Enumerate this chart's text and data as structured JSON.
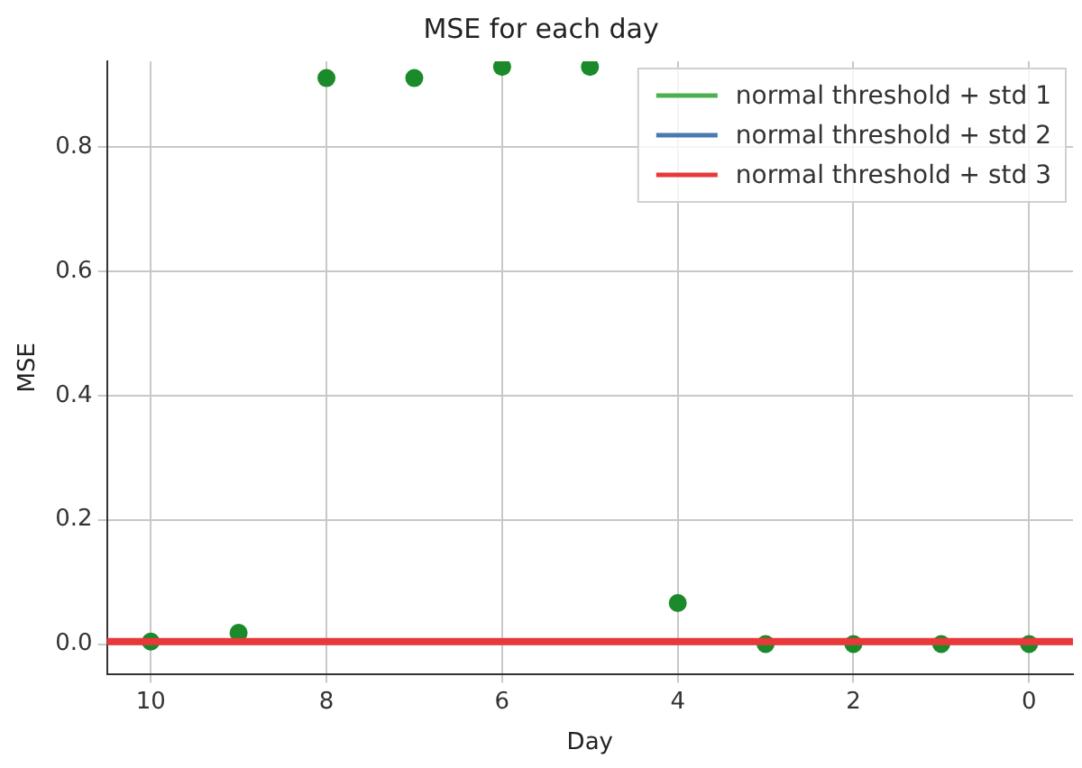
{
  "chart_data": {
    "type": "scatter",
    "title": "MSE for each day",
    "xlabel": "Day",
    "ylabel": "MSE",
    "xlim": [
      10.5,
      -0.5
    ],
    "xticks": [
      10,
      8,
      6,
      4,
      2,
      0
    ],
    "ylim": [
      -0.048,
      0.938
    ],
    "yticks": [
      {
        "value": 0,
        "label": "0.0"
      },
      {
        "value": 0.2,
        "label": "0.2"
      },
      {
        "value": 0.4,
        "label": "0.4"
      },
      {
        "value": 0.6,
        "label": "0.6"
      },
      {
        "value": 0.8,
        "label": "0.8"
      }
    ],
    "x": [
      10,
      9,
      8,
      7,
      6,
      5,
      4,
      3,
      2,
      1,
      0
    ],
    "series": [
      {
        "color": "#1a8a2a",
        "marker": "circle",
        "values": [
          0.004,
          0.018,
          0.911,
          0.911,
          0.929,
          0.929,
          0.066,
          0.0,
          0.0,
          0.0,
          0.0
        ]
      },
      {
        "type": "line",
        "name": "normal threshold + std 1",
        "color": "#4caf50",
        "values": [
          null,
          null,
          null,
          null,
          null,
          null,
          null,
          null,
          null,
          null,
          null
        ]
      },
      {
        "type": "line",
        "name": "normal threshold + std 2",
        "color": "#4a78b0",
        "values": [
          null,
          null,
          null,
          null,
          null,
          null,
          null,
          null,
          null,
          null,
          null
        ]
      },
      {
        "type": "line",
        "name": "normal threshold + std 3",
        "color": "#e8383a",
        "x": [
          10.5,
          -0.5
        ],
        "values": [
          0.004,
          0.004
        ]
      }
    ],
    "grid": true,
    "legend": "top right",
    "line_style": "solid"
  }
}
